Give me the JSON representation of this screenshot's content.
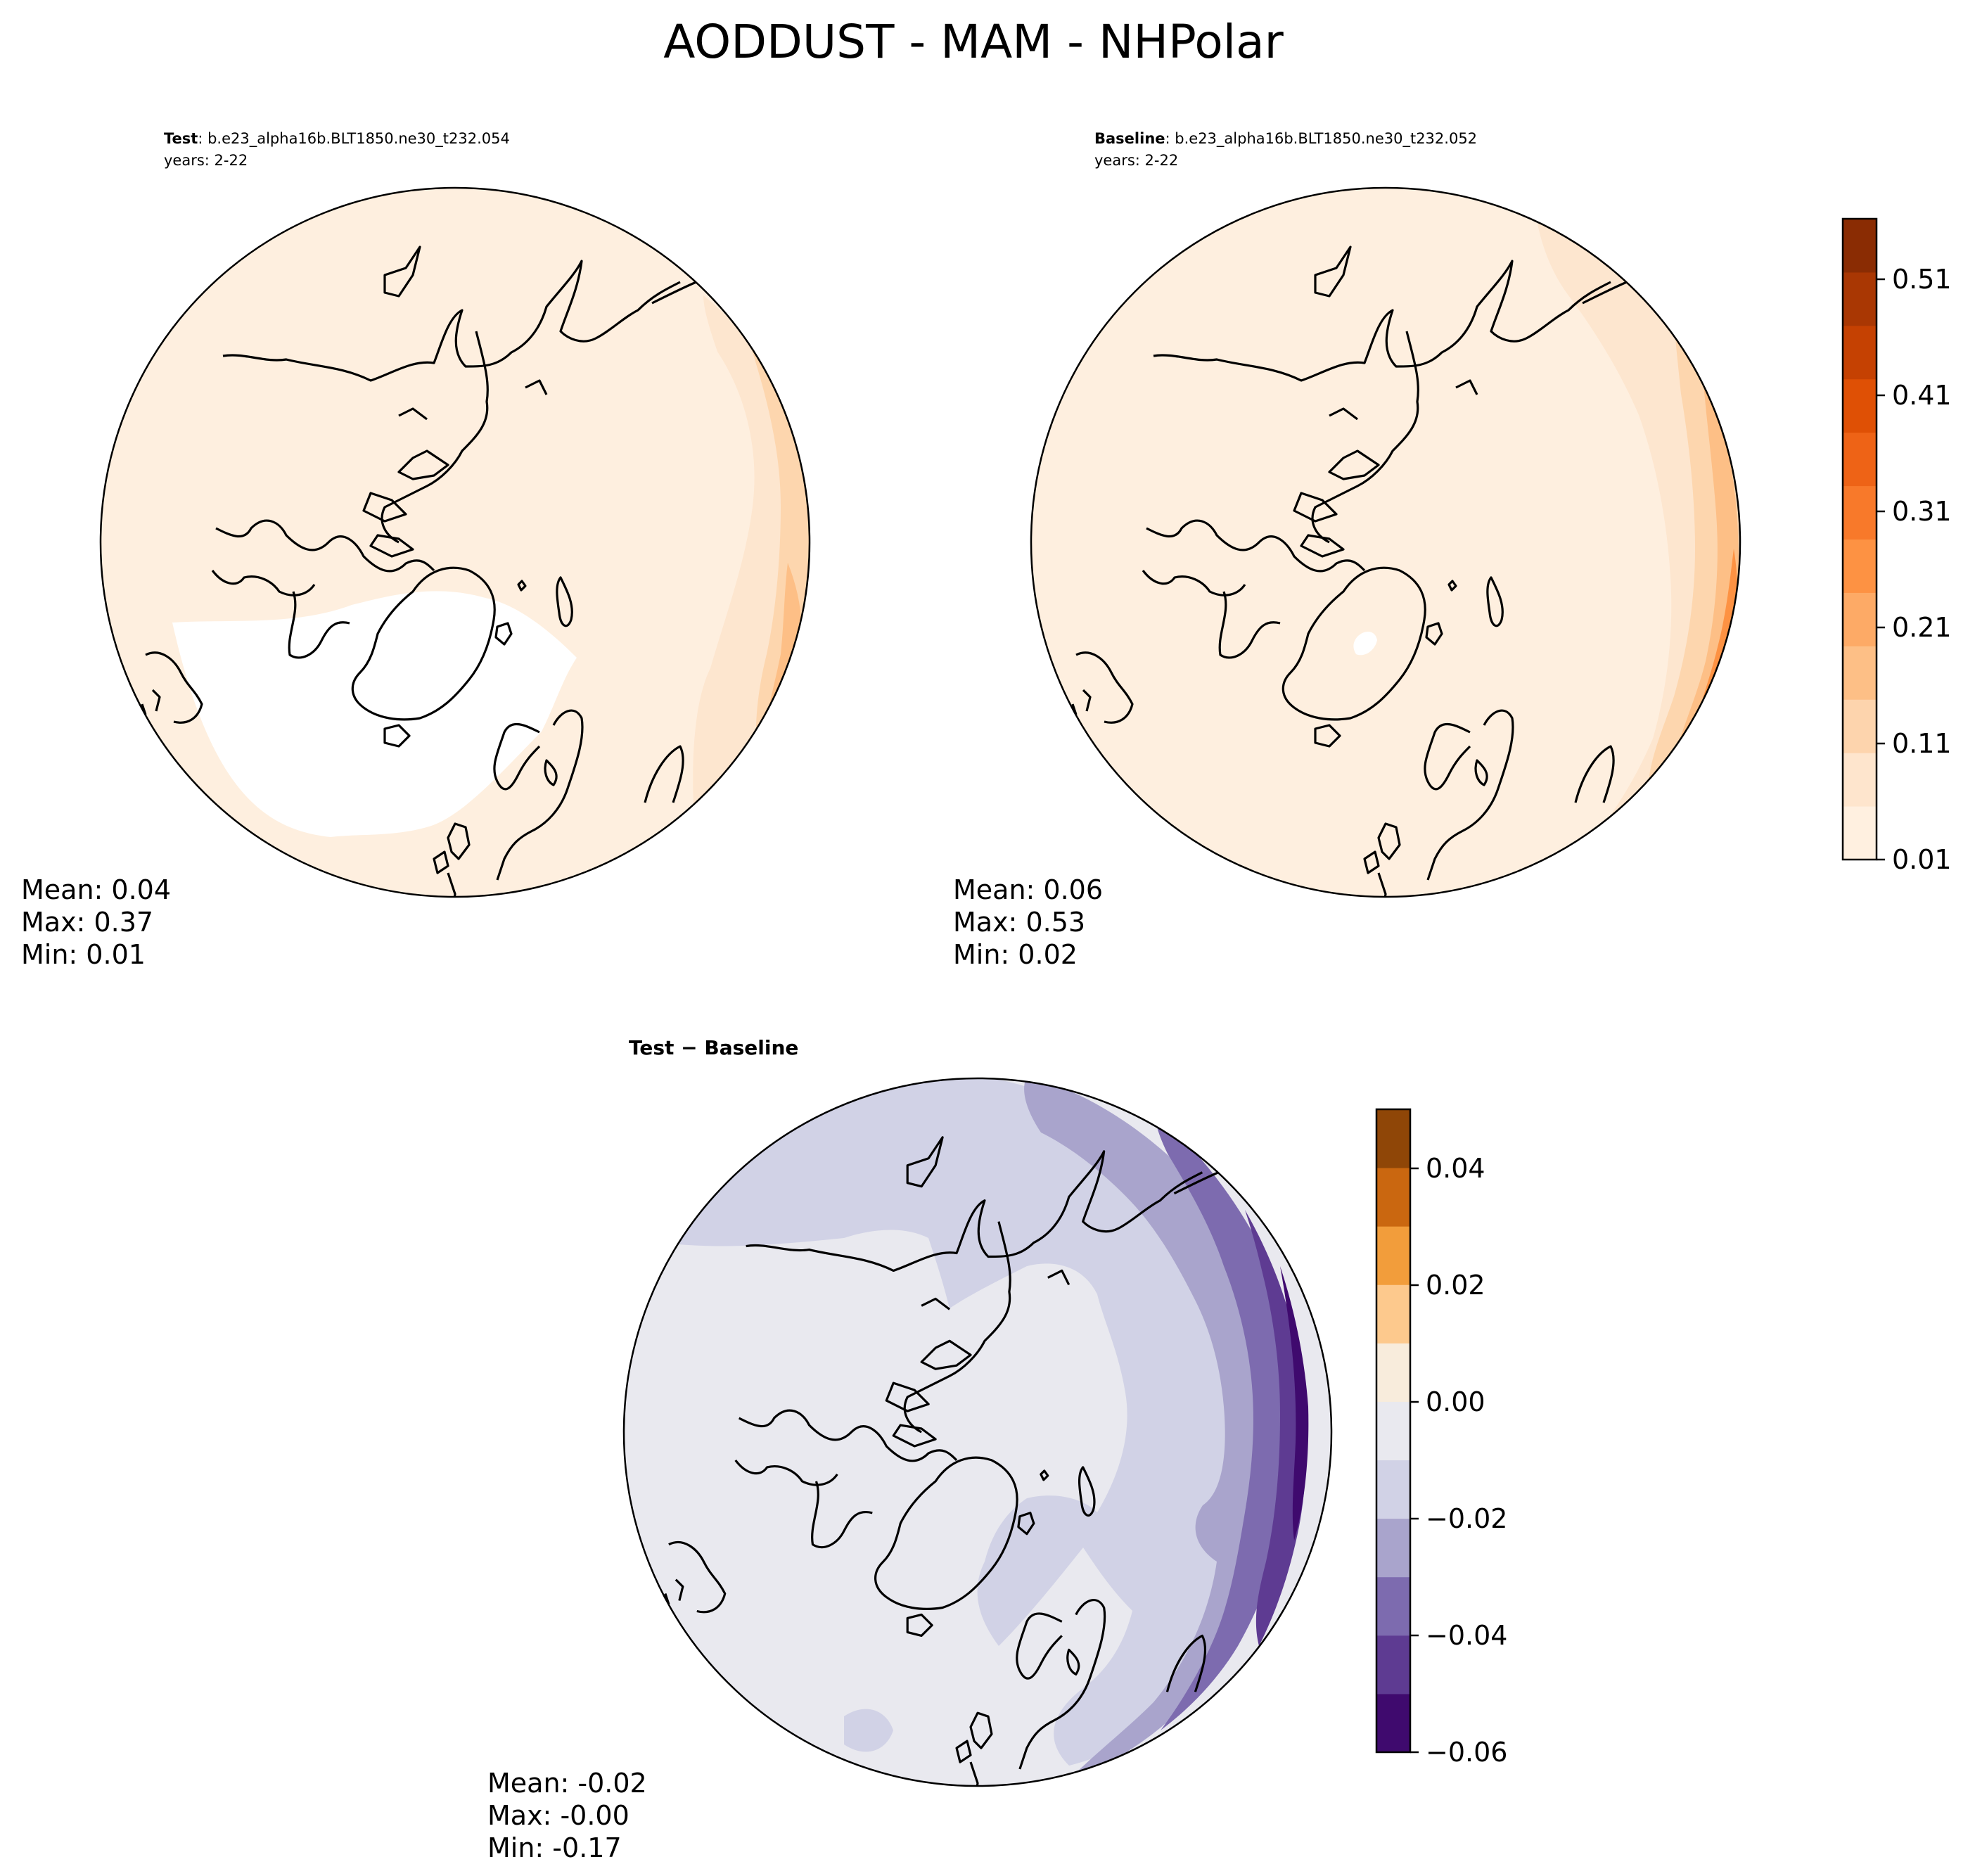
{
  "figure": {
    "title": "AODDUST - MAM - NHPolar"
  },
  "panels": {
    "test": {
      "label_bold": "Test",
      "label_rest": ": b.e23_alpha16b.BLT1850.ne30_t232.054",
      "years": "years: 2-22",
      "stats": {
        "mean": "Mean:  0.04",
        "max": "Max:  0.37",
        "min": "Min:  0.01"
      }
    },
    "baseline": {
      "label_bold": "Baseline",
      "label_rest": ": b.e23_alpha16b.BLT1850.ne30_t232.052",
      "years": "years: 2-22",
      "stats": {
        "mean": "Mean:  0.06",
        "max": "Max:  0.53",
        "min": "Min:  0.02"
      }
    },
    "diff": {
      "label": "Test − Baseline",
      "stats": {
        "mean": "Mean: -0.02",
        "max": "Max: -0.00",
        "min": "Min: -0.17"
      }
    }
  },
  "colorbars": {
    "abs": {
      "ticks": [
        "0.01",
        "0.11",
        "0.21",
        "0.31",
        "0.41",
        "0.51"
      ],
      "colors": [
        "#fff0e0",
        "#fee5cd",
        "#fdd4ad",
        "#fdbf86",
        "#fdaa66",
        "#fd9243",
        "#f8792a",
        "#ee6316",
        "#df5005",
        "#c54102",
        "#a93703",
        "#8a2c03"
      ]
    },
    "diff": {
      "ticks": [
        "−0.06",
        "−0.04",
        "−0.02",
        "0.00",
        "0.02",
        "0.04"
      ],
      "colors": [
        "#3f0a6e",
        "#5e3b92",
        "#7d6baf",
        "#a9a4cc",
        "#d1d2e6",
        "#e9e9ef",
        "#f8ecdc",
        "#fdc98d",
        "#f29d3b",
        "#ca6710",
        "#8f4607"
      ]
    }
  }
}
